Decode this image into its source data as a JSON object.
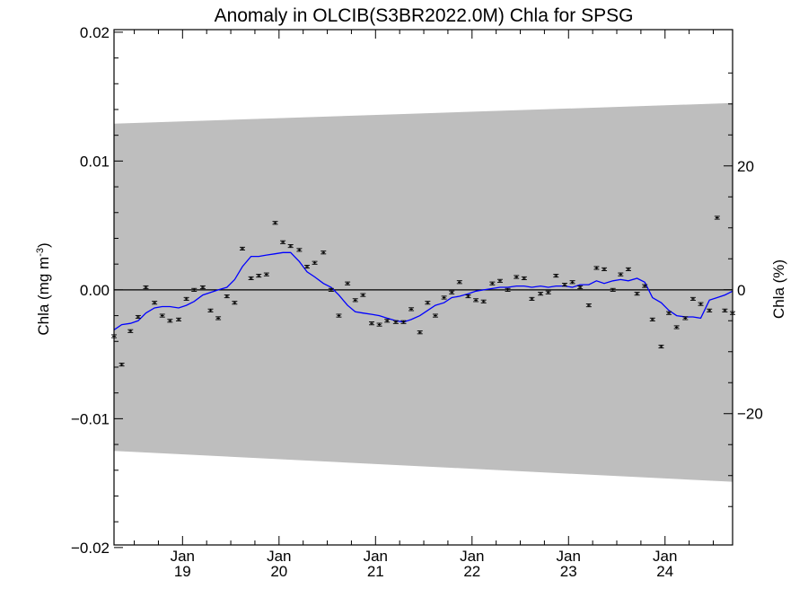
{
  "chart_data": {
    "type": "line",
    "title": "Anomaly in OLCIB(S3BR2022.0M) Chla for SPSG",
    "ylabel": "Chla (mg m",
    "ylabel_sup": "-3",
    "ylabel_close": ")",
    "y2label": "Chla (%)",
    "ylim": [
      -0.0198,
      0.0202
    ],
    "y2lim": [
      -41.2,
      42.0
    ],
    "xlim": [
      2018.29,
      2024.7
    ],
    "grid": false,
    "y_ticks": [
      {
        "value": 0.02,
        "label": "0.02"
      },
      {
        "value": 0.01,
        "label": "0.01"
      },
      {
        "value": 0.0,
        "label": "0.00"
      },
      {
        "value": -0.01,
        "label": "−0.01"
      },
      {
        "value": -0.02,
        "label": "−0.02"
      }
    ],
    "y2_ticks": [
      {
        "value": 20,
        "label": "20"
      },
      {
        "value": 0,
        "label": "0"
      },
      {
        "value": -20,
        "label": "−20"
      }
    ],
    "x_ticks": [
      {
        "value": 2019.0,
        "month": "Jan",
        "year": "19"
      },
      {
        "value": 2020.0,
        "month": "Jan",
        "year": "20"
      },
      {
        "value": 2021.0,
        "month": "Jan",
        "year": "21"
      },
      {
        "value": 2022.0,
        "month": "Jan",
        "year": "22"
      },
      {
        "value": 2023.0,
        "month": "Jan",
        "year": "23"
      },
      {
        "value": 2024.0,
        "month": "Jan",
        "year": "24"
      }
    ],
    "envelope": {
      "x": [
        2018.29,
        2024.7
      ],
      "upper": [
        0.0129,
        0.0145
      ],
      "lower": [
        -0.0125,
        -0.0149
      ],
      "color": "#bebebe"
    },
    "zero_line": 0.0,
    "series": [
      {
        "kind": "monthly_points",
        "color": "#000000",
        "x": [
          2018.29,
          2018.37,
          2018.46,
          2018.54,
          2018.62,
          2018.71,
          2018.79,
          2018.87,
          2018.96,
          2019.04,
          2019.12,
          2019.21,
          2019.29,
          2019.37,
          2019.46,
          2019.54,
          2019.62,
          2019.71,
          2019.79,
          2019.87,
          2019.96,
          2020.04,
          2020.12,
          2020.21,
          2020.29,
          2020.37,
          2020.46,
          2020.54,
          2020.62,
          2020.71,
          2020.79,
          2020.87,
          2020.96,
          2021.04,
          2021.12,
          2021.21,
          2021.29,
          2021.37,
          2021.46,
          2021.54,
          2021.62,
          2021.71,
          2021.79,
          2021.87,
          2021.96,
          2022.04,
          2022.12,
          2022.21,
          2022.29,
          2022.37,
          2022.46,
          2022.54,
          2022.62,
          2022.71,
          2022.79,
          2022.87,
          2022.96,
          2023.04,
          2023.12,
          2023.21,
          2023.29,
          2023.37,
          2023.46,
          2023.54,
          2023.62,
          2023.71,
          2023.79,
          2023.87,
          2023.96,
          2024.04,
          2024.12,
          2024.21,
          2024.29,
          2024.37,
          2024.46,
          2024.54,
          2024.62,
          2024.7
        ],
        "y": [
          -0.0036,
          -0.0058,
          -0.0032,
          -0.0021,
          0.0002,
          -0.001,
          -0.002,
          -0.0024,
          -0.0023,
          -0.0007,
          0.0,
          0.0002,
          -0.0016,
          -0.0022,
          -0.0005,
          -0.001,
          0.0032,
          0.0009,
          0.0011,
          0.0012,
          0.0052,
          0.0037,
          0.0034,
          0.0031,
          0.0018,
          0.0021,
          0.0029,
          0.0,
          -0.002,
          0.0005,
          -0.0008,
          -0.0004,
          -0.0026,
          -0.0027,
          -0.0024,
          -0.0025,
          -0.0025,
          -0.0015,
          -0.0033,
          -0.001,
          -0.002,
          -0.0006,
          -0.0002,
          0.0006,
          -0.0005,
          -0.0008,
          -0.0009,
          0.0005,
          0.0007,
          0.0,
          0.001,
          0.0009,
          -0.0007,
          -0.0003,
          -0.0002,
          0.0011,
          0.0004,
          0.0006,
          0.0002,
          -0.0012,
          0.0017,
          0.0016,
          0.0,
          0.0012,
          0.0016,
          -0.0003,
          0.0003,
          -0.0023,
          -0.0044,
          -0.0018,
          -0.0029,
          -0.0022,
          -0.0007,
          -0.0011,
          -0.0016,
          0.0056,
          -0.0016,
          -0.0018
        ]
      },
      {
        "kind": "smoothed_line",
        "color": "#0000ff",
        "x": [
          2018.29,
          2018.37,
          2018.46,
          2018.54,
          2018.62,
          2018.71,
          2018.79,
          2018.87,
          2018.96,
          2019.04,
          2019.12,
          2019.21,
          2019.29,
          2019.37,
          2019.46,
          2019.54,
          2019.62,
          2019.71,
          2019.79,
          2019.87,
          2019.96,
          2020.04,
          2020.12,
          2020.21,
          2020.29,
          2020.37,
          2020.46,
          2020.54,
          2020.62,
          2020.71,
          2020.79,
          2020.87,
          2020.96,
          2021.04,
          2021.12,
          2021.21,
          2021.29,
          2021.37,
          2021.46,
          2021.54,
          2021.62,
          2021.71,
          2021.79,
          2021.87,
          2021.96,
          2022.04,
          2022.12,
          2022.21,
          2022.29,
          2022.37,
          2022.46,
          2022.54,
          2022.62,
          2022.71,
          2022.79,
          2022.87,
          2022.96,
          2023.04,
          2023.12,
          2023.21,
          2023.29,
          2023.37,
          2023.46,
          2023.54,
          2023.62,
          2023.71,
          2023.79,
          2023.87,
          2023.96,
          2024.04,
          2024.12,
          2024.21,
          2024.29,
          2024.37,
          2024.46,
          2024.54,
          2024.62,
          2024.7
        ],
        "y": [
          -0.0031,
          -0.0027,
          -0.0026,
          -0.0024,
          -0.0018,
          -0.0014,
          -0.0013,
          -0.0013,
          -0.0014,
          -0.0012,
          -0.0009,
          -0.0004,
          -0.0002,
          0.0,
          0.0002,
          0.0008,
          0.0018,
          0.0026,
          0.0026,
          0.0027,
          0.0028,
          0.0029,
          0.0029,
          0.0022,
          0.0014,
          0.001,
          0.0005,
          0.0002,
          -0.0004,
          -0.0012,
          -0.0017,
          -0.0018,
          -0.0019,
          -0.002,
          -0.0022,
          -0.0024,
          -0.0025,
          -0.0023,
          -0.002,
          -0.0016,
          -0.0012,
          -0.001,
          -0.0006,
          -0.0005,
          -0.0003,
          -0.0001,
          0.0,
          0.0001,
          0.0002,
          0.0002,
          0.0003,
          0.0003,
          0.0002,
          0.0003,
          0.0002,
          0.0003,
          0.0003,
          0.0002,
          0.0004,
          0.0004,
          0.0007,
          0.0005,
          0.0007,
          0.0008,
          0.0007,
          0.0009,
          0.0006,
          -0.0006,
          -0.001,
          -0.0016,
          -0.002,
          -0.0021,
          -0.0021,
          -0.0022,
          -0.0008,
          -0.0006,
          -0.0004,
          -0.0001
        ]
      }
    ]
  }
}
